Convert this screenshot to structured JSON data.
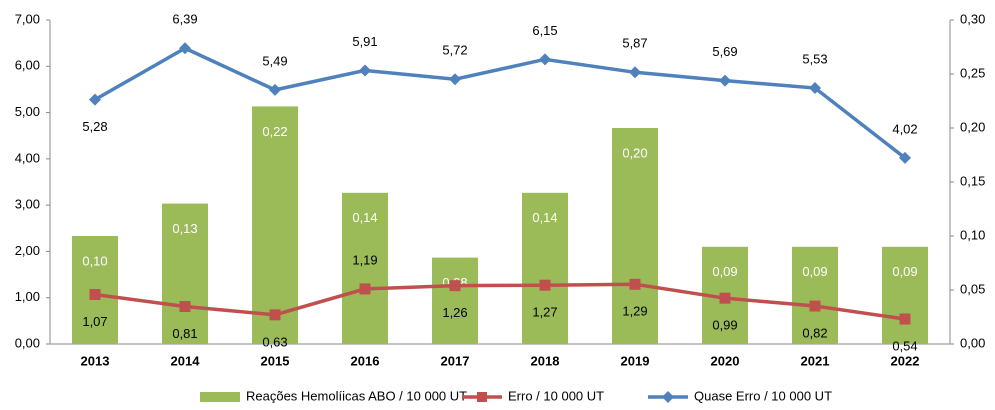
{
  "chart_data": {
    "type": "combo",
    "categories": [
      "2013",
      "2014",
      "2015",
      "2016",
      "2017",
      "2018",
      "2019",
      "2020",
      "2021",
      "2022"
    ],
    "series": [
      {
        "name": "Reações Hemolíicas ABO / 10 000 UT",
        "type": "bar",
        "axis": "y2",
        "color": "#9bbb59",
        "values": [
          0.1,
          0.13,
          0.22,
          0.14,
          0.08,
          0.14,
          0.2,
          0.09,
          0.09,
          0.09
        ],
        "value_labels": [
          "0,10",
          "0,13",
          "0,22",
          "0,14",
          "0,08",
          "0,14",
          "0,20",
          "0,09",
          "0,09",
          "0,09"
        ]
      },
      {
        "name": "Erro / 10 000 UT",
        "type": "line",
        "axis": "y",
        "color": "#c0504d",
        "marker": "square",
        "values": [
          1.07,
          0.81,
          0.63,
          1.19,
          1.26,
          1.27,
          1.29,
          0.99,
          0.82,
          0.54
        ],
        "value_labels": [
          "1,07",
          "0,81",
          "0,63",
          "1,19",
          "1,26",
          "1,27",
          "1,29",
          "0,99",
          "0,82",
          "0,54"
        ]
      },
      {
        "name": "Quase Erro / 10 000 UT",
        "type": "line",
        "axis": "y",
        "color": "#4f81bd",
        "marker": "diamond",
        "values": [
          5.28,
          6.39,
          5.49,
          5.91,
          5.72,
          6.15,
          5.87,
          5.69,
          5.53,
          4.02
        ],
        "value_labels": [
          "5,28",
          "6,39",
          "5,49",
          "5,91",
          "5,72",
          "6,15",
          "5,87",
          "5,69",
          "5,53",
          "4,02"
        ]
      }
    ],
    "ylim": [
      0,
      7
    ],
    "yticks": [
      {
        "value": 0,
        "label": "0,00"
      },
      {
        "value": 1,
        "label": "1,00"
      },
      {
        "value": 2,
        "label": "2,00"
      },
      {
        "value": 3,
        "label": "3,00"
      },
      {
        "value": 4,
        "label": "4,00"
      },
      {
        "value": 5,
        "label": "5,00"
      },
      {
        "value": 6,
        "label": "6,00"
      },
      {
        "value": 7,
        "label": "7,00"
      }
    ],
    "y2lim": [
      0,
      0.3
    ],
    "y2ticks": [
      {
        "value": 0,
        "label": "0,00"
      },
      {
        "value": 0.05,
        "label": "0,05"
      },
      {
        "value": 0.1,
        "label": "0,10"
      },
      {
        "value": 0.15,
        "label": "0,15"
      },
      {
        "value": 0.2,
        "label": "0,20"
      },
      {
        "value": 0.25,
        "label": "0,25"
      },
      {
        "value": 0.3,
        "label": "0,30"
      }
    ],
    "legend": "bottom"
  }
}
